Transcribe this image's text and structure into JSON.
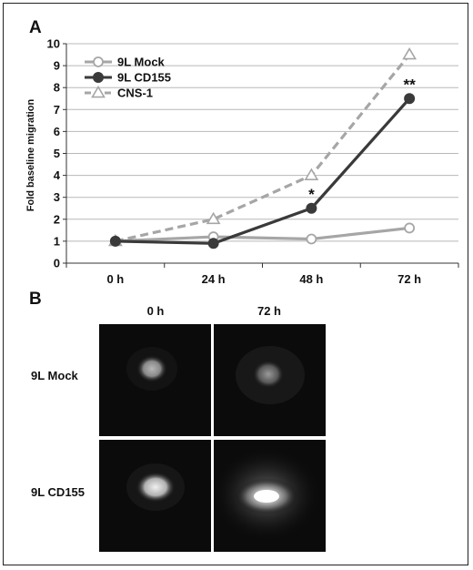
{
  "panel_a": {
    "letter": "A"
  },
  "panel_b": {
    "letter": "B",
    "columns": [
      "0 h",
      "72 h"
    ],
    "rows": [
      "9L Mock",
      "9L CD155"
    ]
  },
  "chart_data": {
    "type": "line",
    "title": "",
    "xlabel": "",
    "ylabel": "Fold baseline migration",
    "categories": [
      "0 h",
      "24 h",
      "48 h",
      "72 h"
    ],
    "ylim": [
      0,
      10
    ],
    "yticks": [
      0,
      1,
      2,
      3,
      4,
      5,
      6,
      7,
      8,
      9,
      10
    ],
    "grid": true,
    "legend_position": "top-left",
    "series": [
      {
        "name": "9L Mock",
        "values": [
          1.0,
          1.2,
          1.1,
          1.6
        ],
        "color": "#a6a6a6",
        "marker": "circle-open",
        "dashed": false
      },
      {
        "name": "9L CD155",
        "values": [
          1.0,
          0.9,
          2.5,
          7.5
        ],
        "color": "#3a3a3a",
        "marker": "circle-filled",
        "dashed": false
      },
      {
        "name": "CNS-1",
        "values": [
          1.0,
          2.0,
          4.0,
          9.5
        ],
        "color": "#a6a6a6",
        "marker": "triangle-open",
        "dashed": true
      }
    ],
    "annotations": [
      {
        "text": "*",
        "category": "48 h",
        "y": 2.5
      },
      {
        "text": "**",
        "category": "72 h",
        "y": 7.5
      }
    ]
  }
}
